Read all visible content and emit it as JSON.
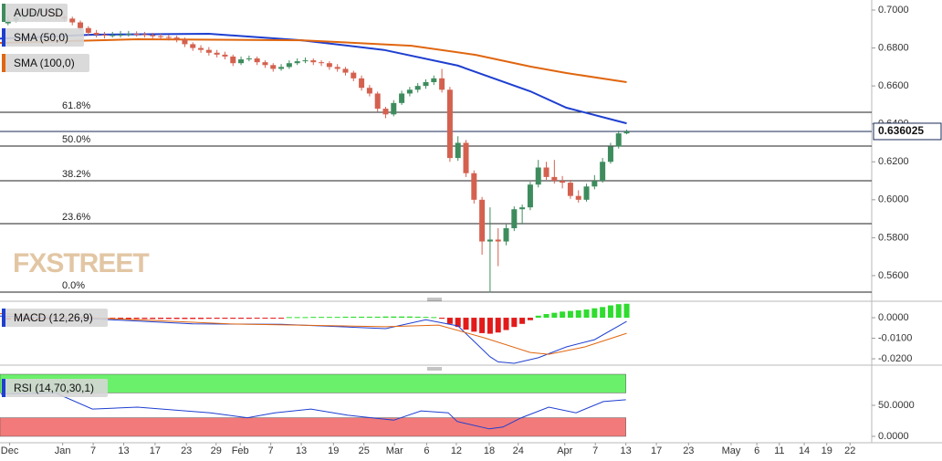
{
  "chart_data": [
    {
      "type": "candlestick",
      "name": "AUD/USD",
      "up_color": "#3e8c5e",
      "down_color": "#d4614f",
      "ohlc": [
        [
          0.693,
          0.6965,
          0.692,
          0.6945
        ],
        [
          0.6945,
          0.6975,
          0.6935,
          0.696
        ],
        [
          0.696,
          0.699,
          0.695,
          0.6975
        ],
        [
          0.6975,
          0.7005,
          0.6965,
          0.699
        ],
        [
          0.699,
          0.701,
          0.6975,
          0.6995
        ],
        [
          0.6995,
          0.7005,
          0.697,
          0.6985
        ],
        [
          0.6985,
          0.6995,
          0.695,
          0.6965
        ],
        [
          0.6965,
          0.6975,
          0.694,
          0.6955
        ],
        [
          0.6955,
          0.6965,
          0.692,
          0.6935
        ],
        [
          0.6935,
          0.6945,
          0.689,
          0.6905
        ],
        [
          0.6905,
          0.6915,
          0.6865,
          0.688
        ],
        [
          0.688,
          0.6895,
          0.6855,
          0.687
        ],
        [
          0.687,
          0.6885,
          0.685,
          0.6865
        ],
        [
          0.6865,
          0.6885,
          0.6855,
          0.6868
        ],
        [
          0.6868,
          0.689,
          0.6855,
          0.687
        ],
        [
          0.687,
          0.689,
          0.686,
          0.6875
        ],
        [
          0.6875,
          0.6888,
          0.686,
          0.6872
        ],
        [
          0.6872,
          0.6885,
          0.6855,
          0.6868
        ],
        [
          0.6868,
          0.688,
          0.685,
          0.6862
        ],
        [
          0.6862,
          0.6875,
          0.6845,
          0.6858
        ],
        [
          0.6858,
          0.687,
          0.684,
          0.6855
        ],
        [
          0.6855,
          0.6865,
          0.683,
          0.6845
        ],
        [
          0.6845,
          0.6855,
          0.6805,
          0.682
        ],
        [
          0.682,
          0.683,
          0.6785,
          0.68
        ],
        [
          0.68,
          0.6815,
          0.6775,
          0.679
        ],
        [
          0.679,
          0.6805,
          0.676,
          0.6775
        ],
        [
          0.6775,
          0.679,
          0.675,
          0.6765
        ],
        [
          0.6765,
          0.678,
          0.674,
          0.6755
        ],
        [
          0.6755,
          0.6765,
          0.6705,
          0.672
        ],
        [
          0.672,
          0.6755,
          0.671,
          0.674
        ],
        [
          0.674,
          0.676,
          0.673,
          0.6745
        ],
        [
          0.6745,
          0.6755,
          0.671,
          0.6725
        ],
        [
          0.6725,
          0.6735,
          0.6695,
          0.671
        ],
        [
          0.671,
          0.672,
          0.6675,
          0.669
        ],
        [
          0.669,
          0.6715,
          0.668,
          0.67
        ],
        [
          0.67,
          0.6735,
          0.669,
          0.672
        ],
        [
          0.672,
          0.6745,
          0.671,
          0.673
        ],
        [
          0.673,
          0.675,
          0.672,
          0.6735
        ],
        [
          0.6735,
          0.6745,
          0.671,
          0.6725
        ],
        [
          0.6725,
          0.6735,
          0.6705,
          0.672
        ],
        [
          0.672,
          0.673,
          0.6685,
          0.67
        ],
        [
          0.67,
          0.6715,
          0.6675,
          0.669
        ],
        [
          0.669,
          0.67,
          0.6655,
          0.667
        ],
        [
          0.667,
          0.668,
          0.6625,
          0.664
        ],
        [
          0.664,
          0.6655,
          0.6575,
          0.659
        ],
        [
          0.659,
          0.6605,
          0.6545,
          0.656
        ],
        [
          0.656,
          0.657,
          0.6465,
          0.648
        ],
        [
          0.648,
          0.649,
          0.643,
          0.645
        ],
        [
          0.645,
          0.6525,
          0.644,
          0.651
        ],
        [
          0.651,
          0.6575,
          0.65,
          0.656
        ],
        [
          0.656,
          0.6595,
          0.6545,
          0.658
        ],
        [
          0.658,
          0.6615,
          0.6565,
          0.66
        ],
        [
          0.66,
          0.6635,
          0.6585,
          0.662
        ],
        [
          0.662,
          0.6655,
          0.6605,
          0.664
        ],
        [
          0.664,
          0.669,
          0.6565,
          0.658
        ],
        [
          0.658,
          0.6595,
          0.62,
          0.622
        ],
        [
          0.622,
          0.6335,
          0.6205,
          0.63
        ],
        [
          0.63,
          0.6315,
          0.612,
          0.614
        ],
        [
          0.614,
          0.6155,
          0.598,
          0.6
        ],
        [
          0.6,
          0.6015,
          0.571,
          0.578
        ],
        [
          0.578,
          0.596,
          0.551,
          0.579
        ],
        [
          0.579,
          0.585,
          0.565,
          0.578
        ],
        [
          0.578,
          0.587,
          0.576,
          0.585
        ],
        [
          0.585,
          0.5965,
          0.5835,
          0.595
        ],
        [
          0.595,
          0.5975,
          0.587,
          0.596
        ],
        [
          0.596,
          0.6095,
          0.5945,
          0.608
        ],
        [
          0.608,
          0.621,
          0.6065,
          0.617
        ],
        [
          0.617,
          0.62,
          0.6105,
          0.612
        ],
        [
          0.612,
          0.621,
          0.6085,
          0.61
        ],
        [
          0.61,
          0.6125,
          0.606,
          0.609
        ],
        [
          0.609,
          0.6105,
          0.6005,
          0.602
        ],
        [
          0.602,
          0.605,
          0.5985,
          0.6
        ],
        [
          0.6,
          0.6085,
          0.599,
          0.607
        ],
        [
          0.607,
          0.613,
          0.6055,
          0.61
        ],
        [
          0.61,
          0.622,
          0.609,
          0.62
        ],
        [
          0.62,
          0.63,
          0.619,
          0.628
        ],
        [
          0.628,
          0.6365,
          0.627,
          0.635
        ],
        [
          0.635,
          0.637,
          0.6345,
          0.636
        ]
      ],
      "lines": [
        {
          "name": "SMA (50,0)",
          "color": "#1e3fd0",
          "x": [
            -1,
            10.5,
            25,
            36.5,
            46.8,
            56,
            65,
            69.5,
            77
          ],
          "values": [
            0.685,
            0.687,
            0.6875,
            0.6841,
            0.679,
            0.6707,
            0.6572,
            0.6485,
            0.6403
          ]
        },
        {
          "name": "SMA (100,0)",
          "color": "#e0660f",
          "x": [
            -1,
            16.1,
            36.5,
            50.2,
            58.2,
            65,
            69.5,
            77
          ],
          "values": [
            0.6827,
            0.6846,
            0.6841,
            0.6812,
            0.6764,
            0.6702,
            0.6668,
            0.662
          ]
        }
      ],
      "levels": [
        {
          "label": "61.8%",
          "value": 0.6461
        },
        {
          "label": "50.0%",
          "value": 0.6283
        },
        {
          "label": "38.2%",
          "value": 0.61
        },
        {
          "label": "23.6%",
          "value": 0.5874
        },
        {
          "label": "0.0%",
          "value": 0.5513
        }
      ],
      "last_price": {
        "value": 0.636025,
        "label": "0.636025"
      },
      "watermark": "FXSTREET",
      "ylim": [
        0.5465,
        0.7053
      ],
      "yticks": [
        {
          "value": 0.7,
          "label": "0.7000"
        },
        {
          "value": 0.68,
          "label": "0.6800"
        },
        {
          "value": 0.66,
          "label": "0.6600"
        },
        {
          "value": 0.64,
          "label": "0.6400"
        },
        {
          "value": 0.62,
          "label": "0.6200"
        },
        {
          "value": 0.6,
          "label": "0.6000"
        },
        {
          "value": 0.58,
          "label": "0.5800"
        },
        {
          "value": 0.56,
          "label": "0.5600"
        }
      ]
    },
    {
      "type": "macd",
      "name": "MACD (12,26,9)",
      "histogram": {
        "up_color": "#2fdc2f",
        "down_color": "#e21a1a",
        "values": [
          -0.001,
          -0.001,
          -0.001,
          -0.001,
          -0.001,
          -0.0008,
          -0.0008,
          -0.0008,
          -0.0008,
          -0.0008,
          -0.0008,
          -0.0007,
          -0.0007,
          -0.0007,
          -0.0007,
          -0.0007,
          -0.0006,
          -0.0006,
          -0.0006,
          -0.0006,
          -0.0006,
          -0.0006,
          -0.0006,
          -0.0006,
          -0.0006,
          -0.0005,
          -0.0005,
          -0.0005,
          -0.0005,
          -0.0005,
          -0.0005,
          -0.0004,
          -0.0004,
          -0.0004,
          -0.0004,
          0.0003,
          0.0003,
          0.0003,
          0.0004,
          0.0004,
          0.0004,
          0.0004,
          0.0005,
          0.0005,
          0.0005,
          0.0005,
          0.0005,
          0.0006,
          0.0006,
          0.0006,
          0.0006,
          0.0005,
          0.0004,
          0.0003,
          -0.0005,
          -0.003,
          -0.0045,
          -0.0058,
          -0.0068,
          -0.0075,
          -0.0078,
          -0.0072,
          -0.006,
          -0.0045,
          -0.003,
          -0.0012,
          0.001,
          0.0018,
          0.0024,
          0.003,
          0.0033,
          0.0036,
          0.004,
          0.0046,
          0.0052,
          0.006,
          0.0066,
          0.0068
        ]
      },
      "lines": [
        {
          "color": "#1e3fd0",
          "x": [
            -1,
            10.5,
            23,
            34,
            47,
            52,
            56,
            60,
            61,
            63,
            66,
            69.5,
            73,
            77
          ],
          "values": [
            0.0008,
            -0.0005,
            -0.003,
            -0.0032,
            -0.0053,
            -0.001,
            -0.004,
            -0.019,
            -0.0215,
            -0.0222,
            -0.0195,
            -0.0142,
            -0.0107,
            -0.0018
          ]
        },
        {
          "color": "#e0660f",
          "x": [
            -1,
            27.5,
            47,
            53.6,
            59.3,
            65,
            67.3,
            71.8,
            77
          ],
          "values": [
            0.002,
            -0.003,
            -0.0044,
            -0.0036,
            -0.0098,
            -0.0169,
            -0.0178,
            -0.0142,
            -0.0076
          ]
        }
      ],
      "ylim": [
        -0.0231,
        0.0058
      ],
      "yticks": [
        {
          "value": 0,
          "label": "0.0000"
        },
        {
          "value": -0.01,
          "label": "-0.0100"
        },
        {
          "value": -0.02,
          "label": "-0.0200"
        }
      ]
    },
    {
      "type": "rsi",
      "name": "RSI (14,70,30,1)",
      "bands": [
        {
          "from": 70,
          "to": 100,
          "color": "#6bf06b"
        },
        {
          "from": 0,
          "to": 30,
          "color": "#f27a7a"
        }
      ],
      "color": "#1e3fd0",
      "x": [
        -0.9,
        5.9,
        10.5,
        16.1,
        25.2,
        29.8,
        33.2,
        37.7,
        42.3,
        48,
        51.4,
        54.8,
        55.9,
        59.9,
        61.6,
        63.9,
        67.3,
        70.7,
        74.1,
        76.9
      ],
      "values": [
        68,
        70,
        44,
        47,
        38,
        30,
        38,
        44,
        34,
        26,
        41,
        38,
        24,
        12,
        15,
        30,
        47,
        38,
        56,
        59
      ],
      "ylim": [
        -10.3,
        100
      ],
      "yticks": [
        {
          "value": 50,
          "label": "50.0000"
        },
        {
          "value": 0,
          "label": "0.0000"
        }
      ],
      "xlim": [
        -1,
        107.5
      ],
      "xticks": [
        {
          "value": 0.2,
          "label": "Dec"
        },
        {
          "value": 6.8,
          "label": "Jan"
        },
        {
          "value": 10.6,
          "label": "7"
        },
        {
          "value": 14.4,
          "label": "13"
        },
        {
          "value": 18.3,
          "label": "17"
        },
        {
          "value": 22.2,
          "label": "23"
        },
        {
          "value": 25.9,
          "label": "29"
        },
        {
          "value": 28.9,
          "label": "Feb"
        },
        {
          "value": 32.7,
          "label": "7"
        },
        {
          "value": 36.5,
          "label": "13"
        },
        {
          "value": 40.5,
          "label": "19"
        },
        {
          "value": 44.3,
          "label": "25"
        },
        {
          "value": 48.1,
          "label": "Mar"
        },
        {
          "value": 52.1,
          "label": "6"
        },
        {
          "value": 55.8,
          "label": "12"
        },
        {
          "value": 59.9,
          "label": "18"
        },
        {
          "value": 63.5,
          "label": "24"
        },
        {
          "value": 69.3,
          "label": "Apr"
        },
        {
          "value": 73.1,
          "label": "7"
        },
        {
          "value": 76.9,
          "label": "13"
        },
        {
          "value": 80.7,
          "label": "17"
        },
        {
          "value": 84.7,
          "label": "23"
        },
        {
          "value": 90,
          "label": "May"
        },
        {
          "value": 93.2,
          "label": "6"
        },
        {
          "value": 96,
          "label": "11"
        },
        {
          "value": 99.1,
          "label": "14"
        },
        {
          "value": 101.9,
          "label": "19"
        },
        {
          "value": 104.8,
          "label": "22"
        }
      ]
    }
  ]
}
